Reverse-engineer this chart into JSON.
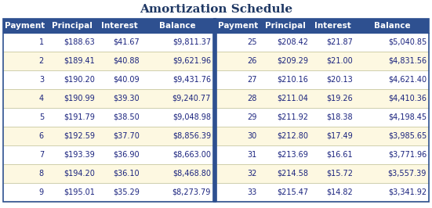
{
  "title": "Amortization Schedule",
  "title_color": "#1f3864",
  "title_fontsize": 11,
  "header_bg": "#2e5090",
  "header_text_color": "#ffffff",
  "row_bg_white": "#ffffff",
  "row_bg_cream": "#fdf8e1",
  "border_color": "#c8c8a0",
  "outer_border_color": "#2e5090",
  "text_color": "#1a237e",
  "columns": [
    "Payment",
    "Principal",
    "Interest",
    "Balance"
  ],
  "left_data": [
    [
      "1",
      "$188.63",
      "$41.67",
      "$9,811.37"
    ],
    [
      "2",
      "$189.41",
      "$40.88",
      "$9,621.96"
    ],
    [
      "3",
      "$190.20",
      "$40.09",
      "$9,431.76"
    ],
    [
      "4",
      "$190.99",
      "$39.30",
      "$9,240.77"
    ],
    [
      "5",
      "$191.79",
      "$38.50",
      "$9,048.98"
    ],
    [
      "6",
      "$192.59",
      "$37.70",
      "$8,856.39"
    ],
    [
      "7",
      "$193.39",
      "$36.90",
      "$8,663.00"
    ],
    [
      "8",
      "$194.20",
      "$36.10",
      "$8,468.80"
    ],
    [
      "9",
      "$195.01",
      "$35.29",
      "$8,273.79"
    ]
  ],
  "right_data": [
    [
      "25",
      "$208.42",
      "$21.87",
      "$5,040.85"
    ],
    [
      "26",
      "$209.29",
      "$21.00",
      "$4,831.56"
    ],
    [
      "27",
      "$210.16",
      "$20.13",
      "$4,621.40"
    ],
    [
      "28",
      "$211.04",
      "$19.26",
      "$4,410.36"
    ],
    [
      "29",
      "$211.92",
      "$18.38",
      "$4,198.45"
    ],
    [
      "30",
      "$212.80",
      "$17.49",
      "$3,985.65"
    ],
    [
      "31",
      "$213.69",
      "$16.61",
      "$3,771.96"
    ],
    [
      "32",
      "$214.58",
      "$15.72",
      "$3,557.39"
    ],
    [
      "33",
      "$215.47",
      "$14.82",
      "$3,341.92"
    ]
  ]
}
